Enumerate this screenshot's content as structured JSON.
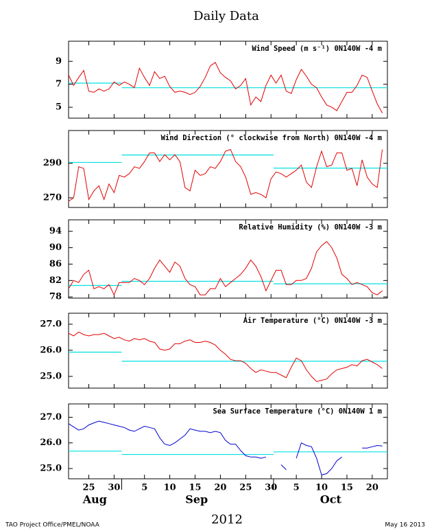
{
  "title": "Daily Data",
  "year": "2012",
  "footer_left": "TAO Project Office/PMEL/NOAA",
  "footer_right": "May 16 2013",
  "chart_data": [
    {
      "type": "line",
      "title": "Wind Speed (m s⁻¹) 0N140W  -4 m",
      "x": [
        21,
        22,
        23,
        24,
        25,
        26,
        27,
        28,
        29,
        30,
        31,
        32,
        33,
        34,
        35,
        36,
        37,
        38,
        39,
        40,
        41,
        42,
        43,
        44,
        45,
        46,
        47,
        48,
        49,
        50,
        51,
        52,
        53,
        54,
        55,
        56,
        57,
        58,
        59,
        60,
        61,
        62,
        63,
        64,
        65,
        66,
        67,
        68,
        69,
        70,
        71,
        72,
        73,
        74,
        75,
        76,
        77,
        78,
        79,
        80,
        81,
        82,
        83
      ],
      "series": [
        {
          "color": "#e00000",
          "values": [
            7.8,
            6.9,
            7.6,
            8.2,
            6.4,
            6.3,
            6.6,
            6.4,
            6.6,
            7.2,
            6.9,
            7.2,
            7.0,
            6.7,
            8.4,
            7.6,
            6.9,
            8.1,
            7.5,
            7.7,
            6.8,
            6.3,
            6.4,
            6.3,
            6.1,
            6.3,
            6.8,
            7.6,
            8.6,
            8.9,
            8.0,
            7.6,
            7.3,
            6.6,
            6.9,
            7.5,
            5.2,
            5.9,
            5.5,
            6.9,
            7.8,
            7.1,
            7.8,
            6.4,
            6.2,
            7.4,
            8.3,
            7.7,
            7.0,
            6.7,
            5.9,
            5.2,
            5.0,
            4.7,
            5.5,
            6.3,
            6.3,
            6.9,
            7.8,
            7.6,
            6.4,
            5.3,
            4.5
          ]
        }
      ],
      "means": {
        "color": "#00e0e0",
        "segments": [
          {
            "x": [
              21,
              31.5
            ],
            "value": 7.1
          },
          {
            "x": [
              31.5,
              61.5
            ],
            "value": 6.7
          },
          {
            "x": [
              61.5,
              84
            ],
            "value": 6.7
          }
        ]
      },
      "xlim": [
        21,
        84
      ],
      "ylim": [
        4.05,
        10.75
      ],
      "yticks": [
        5,
        7,
        9
      ]
    },
    {
      "type": "line",
      "title": "Wind Direction (° clockwise from North) 0N140W  -4 m",
      "x": [
        21,
        22,
        23,
        24,
        25,
        26,
        27,
        28,
        29,
        30,
        31,
        32,
        33,
        34,
        35,
        36,
        37,
        38,
        39,
        40,
        41,
        42,
        43,
        44,
        45,
        46,
        47,
        48,
        49,
        50,
        51,
        52,
        53,
        54,
        55,
        56,
        57,
        58,
        59,
        60,
        61,
        62,
        63,
        64,
        65,
        66,
        67,
        68,
        69,
        70,
        71,
        72,
        73,
        74,
        75,
        76,
        77,
        78,
        79,
        80,
        81,
        82,
        83
      ],
      "series": [
        {
          "color": "#e00000",
          "values": [
            268,
            270,
            288,
            287,
            269,
            274,
            277,
            269,
            278,
            273,
            283,
            282,
            284,
            288,
            287,
            291,
            296,
            296,
            291,
            295,
            292,
            295,
            291,
            276,
            274,
            286,
            283,
            284,
            288,
            287,
            291,
            297,
            298,
            291,
            288,
            282,
            272,
            273,
            272,
            270,
            281,
            285,
            284,
            282,
            284,
            286,
            289,
            279,
            276,
            288,
            297,
            288,
            289,
            296,
            296,
            286,
            287,
            277,
            292,
            282,
            278,
            276,
            298
          ]
        }
      ],
      "means": {
        "color": "#00e0e0",
        "segments": [
          {
            "x": [
              21,
              31.5
            ],
            "value": 290.5
          },
          {
            "x": [
              31.5,
              61.5
            ],
            "value": 294.8
          },
          {
            "x": [
              61.5,
              84
            ],
            "value": 287.2
          }
        ]
      },
      "xlim": [
        21,
        84
      ],
      "ylim": [
        264.4,
        309
      ],
      "yticks": [
        270,
        290
      ]
    },
    {
      "type": "line",
      "title": "Relative Humidity (%) 0N140W  -3 m",
      "x": [
        21,
        22,
        23,
        24,
        25,
        26,
        27,
        28,
        29,
        30,
        31,
        32,
        33,
        34,
        35,
        36,
        37,
        38,
        39,
        40,
        41,
        42,
        43,
        44,
        45,
        46,
        47,
        48,
        49,
        50,
        51,
        52,
        53,
        54,
        55,
        56,
        57,
        58,
        59,
        60,
        61,
        62,
        63,
        64,
        65,
        66,
        67,
        68,
        69,
        70,
        71,
        72,
        73,
        74,
        75,
        76,
        77,
        78,
        79,
        80,
        81,
        82,
        83
      ],
      "series": [
        {
          "color": "#e00000",
          "values": [
            80,
            82,
            81.5,
            83.5,
            84.5,
            80,
            80.5,
            80,
            81,
            78.5,
            81.5,
            81.5,
            81.5,
            82.5,
            82,
            81,
            82.5,
            85,
            87,
            85.5,
            84,
            86.5,
            85.5,
            82.5,
            81,
            80.5,
            78.5,
            78.5,
            80,
            80,
            82.5,
            80.5,
            81.5,
            82.5,
            83.5,
            85,
            87,
            85.5,
            83,
            79.5,
            82,
            84.5,
            84.5,
            81,
            81,
            82,
            82,
            82.5,
            85,
            89,
            90.5,
            91.5,
            90,
            87.5,
            83.5,
            82.5,
            81,
            81.5,
            81,
            80.5,
            79,
            78.5,
            79.5
          ]
        }
      ],
      "means": {
        "color": "#00e0e0",
        "segments": [
          {
            "x": [
              21,
              31.5
            ],
            "value": 80.8
          },
          {
            "x": [
              31.5,
              61.5
            ],
            "value": 81.8
          },
          {
            "x": [
              61.5,
              84
            ],
            "value": 81.2
          }
        ]
      },
      "xlim": [
        21,
        84
      ],
      "ylim": [
        77.7,
        96.8
      ],
      "yticks": [
        78,
        82,
        86,
        90,
        94
      ]
    },
    {
      "type": "line",
      "title": "Air Temperature (°C) 0N140W  -3 m",
      "x": [
        21,
        22,
        23,
        24,
        25,
        26,
        27,
        28,
        29,
        30,
        31,
        32,
        33,
        34,
        35,
        36,
        37,
        38,
        39,
        40,
        41,
        42,
        43,
        44,
        45,
        46,
        47,
        48,
        49,
        50,
        51,
        52,
        53,
        54,
        55,
        56,
        57,
        58,
        59,
        60,
        61,
        62,
        63,
        64,
        65,
        66,
        67,
        68,
        69,
        70,
        71,
        72,
        73,
        74,
        75,
        76,
        77,
        78,
        79,
        80,
        81,
        82,
        83
      ],
      "series": [
        {
          "color": "#e00000",
          "values": [
            26.65,
            26.55,
            26.7,
            26.6,
            26.55,
            26.6,
            26.6,
            26.65,
            26.55,
            26.45,
            26.5,
            26.4,
            26.35,
            26.45,
            26.4,
            26.45,
            26.35,
            26.3,
            26.05,
            26.0,
            26.05,
            26.25,
            26.25,
            26.35,
            26.4,
            26.3,
            26.3,
            26.35,
            26.3,
            26.2,
            26.0,
            25.85,
            25.65,
            25.6,
            25.6,
            25.5,
            25.3,
            25.15,
            25.25,
            25.2,
            25.15,
            25.15,
            25.05,
            24.95,
            25.35,
            25.7,
            25.6,
            25.25,
            25.0,
            24.8,
            24.85,
            24.9,
            25.1,
            25.25,
            25.3,
            25.35,
            25.45,
            25.4,
            25.6,
            25.65,
            25.55,
            25.45,
            25.3
          ]
        }
      ],
      "means": {
        "color": "#00e0e0",
        "segments": [
          {
            "x": [
              21,
              31.5
            ],
            "value": 25.93
          },
          {
            "x": [
              31.5,
              61.5
            ],
            "value": 25.58
          },
          {
            "x": [
              61.5,
              84
            ],
            "value": 25.58
          }
        ]
      },
      "xlim": [
        21,
        84
      ],
      "ylim": [
        24.55,
        27.42
      ],
      "yticks": [
        {
          "value": 25,
          "label": "25.0"
        },
        {
          "value": 26,
          "label": "26.0"
        },
        {
          "value": 27,
          "label": "27.0"
        }
      ]
    },
    {
      "type": "line",
      "title": "Sea Surface Temperature (°C) 0N140W  1 m",
      "x": [
        21,
        22,
        23,
        24,
        25,
        26,
        27,
        28,
        29,
        30,
        31,
        32,
        33,
        34,
        35,
        36,
        37,
        38,
        39,
        40,
        41,
        42,
        43,
        44,
        45,
        46,
        47,
        48,
        49,
        50,
        51,
        52,
        53,
        54,
        55,
        56,
        57,
        58,
        59,
        60,
        61,
        62,
        63,
        64,
        65,
        66,
        67,
        68,
        69,
        70,
        71,
        72,
        73,
        74,
        75,
        76,
        77,
        78,
        79,
        80,
        81,
        82,
        83
      ],
      "series": [
        {
          "color": "#0000d0",
          "values": [
            26.75,
            26.62,
            26.5,
            26.55,
            26.7,
            26.78,
            26.85,
            26.8,
            26.75,
            26.7,
            26.65,
            26.6,
            26.5,
            26.45,
            26.55,
            26.65,
            26.6,
            26.55,
            26.2,
            25.95,
            25.9,
            26.0,
            26.15,
            26.3,
            26.55,
            26.5,
            26.45,
            26.45,
            26.4,
            26.45,
            26.4,
            26.1,
            25.95,
            25.95,
            25.7,
            25.5,
            25.45,
            25.45,
            25.4,
            25.45,
            null,
            null,
            25.15,
            24.95,
            null,
            25.4,
            26.0,
            25.9,
            25.85,
            25.4,
            24.75,
            24.8,
            25.0,
            25.3,
            25.45,
            null,
            null,
            null,
            25.8,
            25.8,
            25.85,
            25.9,
            25.88
          ]
        }
      ],
      "means": {
        "color": "#00e0e0",
        "segments": [
          {
            "x": [
              21,
              31.5
            ],
            "value": 25.68
          },
          {
            "x": [
              31.5,
              61.5
            ],
            "value": 25.55
          },
          {
            "x": [
              61.5,
              84
            ],
            "value": 25.65
          }
        ]
      },
      "xlim": [
        21,
        84
      ],
      "ylim": [
        24.6,
        27.52
      ],
      "yticks": [
        {
          "value": 25,
          "label": "25.0"
        },
        {
          "value": 26,
          "label": "26.0"
        },
        {
          "value": 27,
          "label": "27.0"
        }
      ],
      "xticks": [
        25,
        30,
        {
          "value": 36,
          "label": "5"
        },
        {
          "value": 41,
          "label": "10"
        },
        {
          "value": 46,
          "label": "15"
        },
        {
          "value": 51,
          "label": "20"
        },
        {
          "value": 56,
          "label": "25"
        },
        {
          "value": 61,
          "label": "30"
        },
        {
          "value": 66,
          "label": "5"
        },
        {
          "value": 71,
          "label": "10"
        },
        {
          "value": 76,
          "label": "15"
        },
        {
          "value": 81,
          "label": "20"
        }
      ],
      "months": [
        {
          "value": 26.2,
          "label": "Aug"
        },
        {
          "value": 46.3,
          "label": "Sep"
        },
        {
          "value": 72.8,
          "label": "Oct"
        }
      ],
      "month_boundaries": [
        31.5,
        61.5
      ]
    }
  ]
}
